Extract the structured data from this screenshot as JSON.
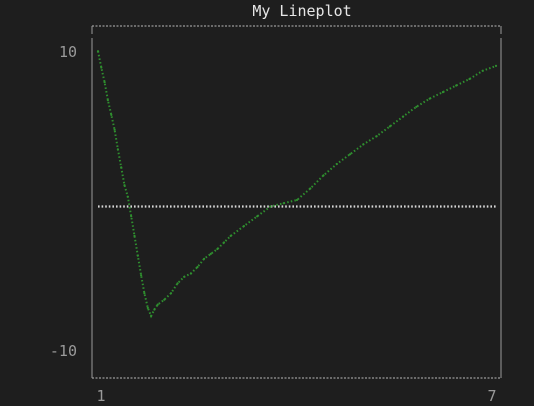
{
  "colors": {
    "background": "#1e1e1e",
    "frame": "#9a9a9a",
    "title": "#e6e6e6",
    "tick": "#9a9a9a",
    "series": "#2f8f2f",
    "zero_line": "#d7d7d7"
  },
  "chart_data": {
    "type": "line",
    "title": "My Lineplot",
    "xlabel": "",
    "ylabel": "",
    "xlim": [
      1,
      7
    ],
    "ylim": [
      -10,
      10
    ],
    "x_tick_labels": [
      "1",
      "7"
    ],
    "y_tick_labels": [
      "10",
      "-10"
    ],
    "grid": false,
    "legend": "none",
    "reference_line_y": 0,
    "series": [
      {
        "x": [
          1.0,
          1.05,
          1.1,
          1.15,
          1.2,
          1.25,
          1.3,
          1.35,
          1.4,
          1.45,
          1.5,
          1.55,
          1.6,
          1.65,
          1.7,
          1.75,
          1.8,
          1.85,
          1.9,
          2.0,
          2.1,
          2.2,
          2.3,
          2.4,
          2.5,
          2.6,
          2.7,
          2.8,
          2.9,
          3.0,
          3.2,
          3.4,
          3.6,
          3.8,
          4.0,
          4.2,
          4.4,
          4.6,
          4.8,
          5.0,
          5.2,
          5.4,
          5.6,
          5.8,
          6.0,
          6.2,
          6.4,
          6.6,
          6.8,
          7.0
        ],
        "y": [
          9.5,
          8.5,
          7.6,
          6.5,
          5.6,
          4.7,
          3.5,
          2.4,
          1.3,
          0.6,
          -0.6,
          -1.8,
          -3.0,
          -4.2,
          -5.3,
          -6.2,
          -6.7,
          -6.3,
          -6.0,
          -5.7,
          -5.3,
          -4.7,
          -4.3,
          -4.1,
          -3.7,
          -3.2,
          -2.9,
          -2.6,
          -2.2,
          -1.8,
          -1.2,
          -0.6,
          0.0,
          0.2,
          0.4,
          1.1,
          1.9,
          2.6,
          3.2,
          3.8,
          4.3,
          4.9,
          5.5,
          6.1,
          6.6,
          7.0,
          7.4,
          7.8,
          8.3,
          8.6
        ]
      }
    ]
  }
}
